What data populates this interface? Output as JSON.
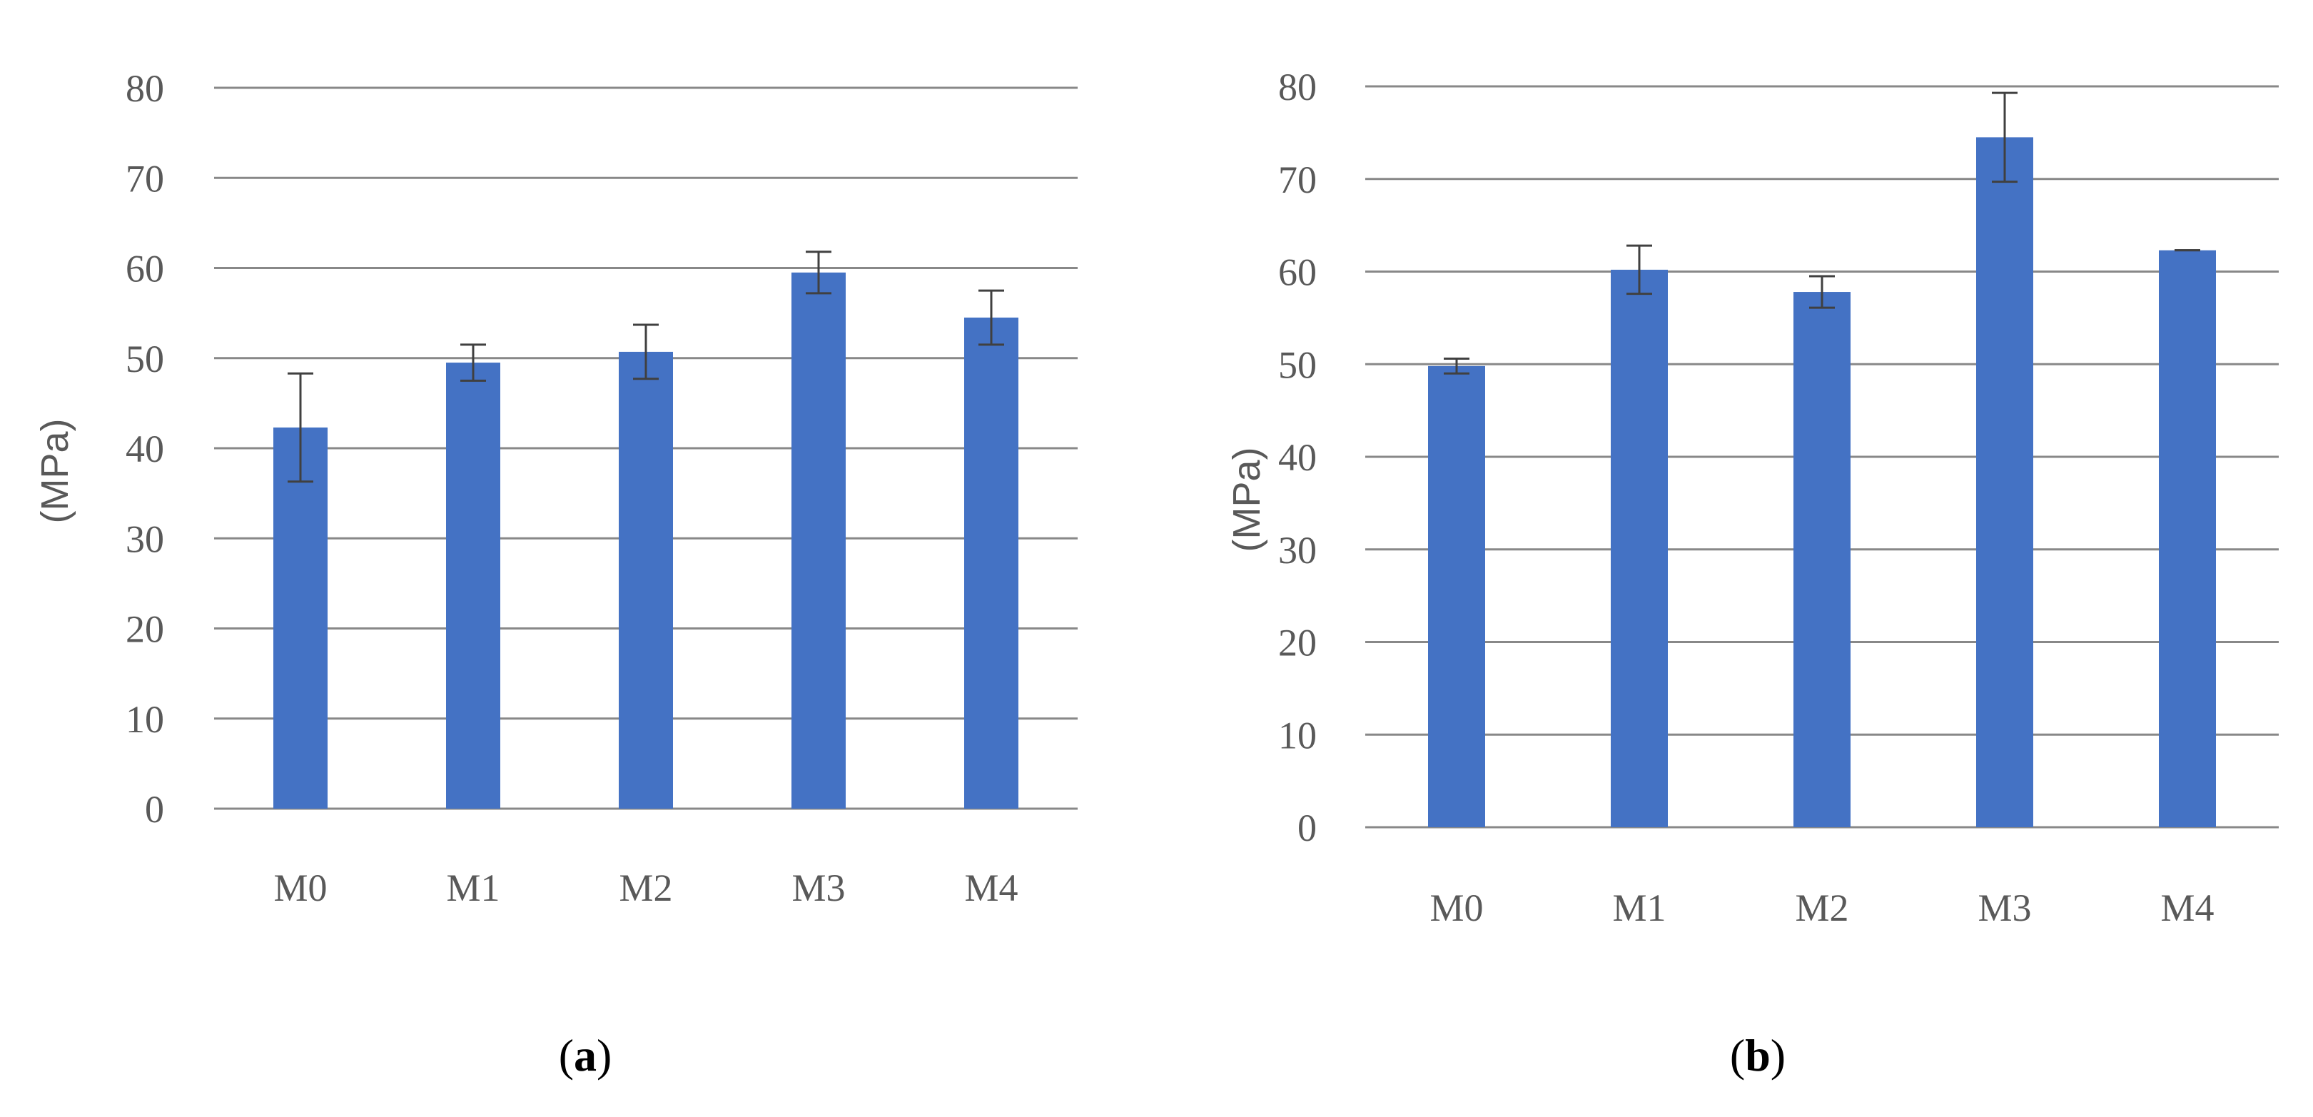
{
  "chart_data": [
    {
      "type": "bar",
      "panel_label": "a",
      "categories": [
        "M0",
        "M1",
        "M2",
        "M3",
        "M4"
      ],
      "values": [
        42.3,
        49.5,
        50.7,
        59.5,
        54.5
      ],
      "error": [
        6.0,
        2.0,
        3.0,
        2.3,
        3.0
      ],
      "ylabel": "(MPa)",
      "ylim": [
        0,
        80
      ],
      "yticks": [
        0,
        10,
        20,
        30,
        40,
        50,
        60,
        70,
        80
      ],
      "grid": true,
      "bar_color": "#4472C4"
    },
    {
      "type": "bar",
      "panel_label": "b",
      "categories": [
        "M0",
        "M1",
        "M2",
        "M3",
        "M4"
      ],
      "values": [
        49.8,
        60.2,
        57.8,
        74.5,
        62.3
      ],
      "error": [
        0.8,
        2.6,
        1.7,
        4.8,
        0.0
      ],
      "ylabel": "(MPa)",
      "ylim": [
        0,
        80
      ],
      "yticks": [
        0,
        10,
        20,
        30,
        40,
        50,
        60,
        70,
        80
      ],
      "grid": true,
      "bar_color": "#4472C4"
    }
  ]
}
